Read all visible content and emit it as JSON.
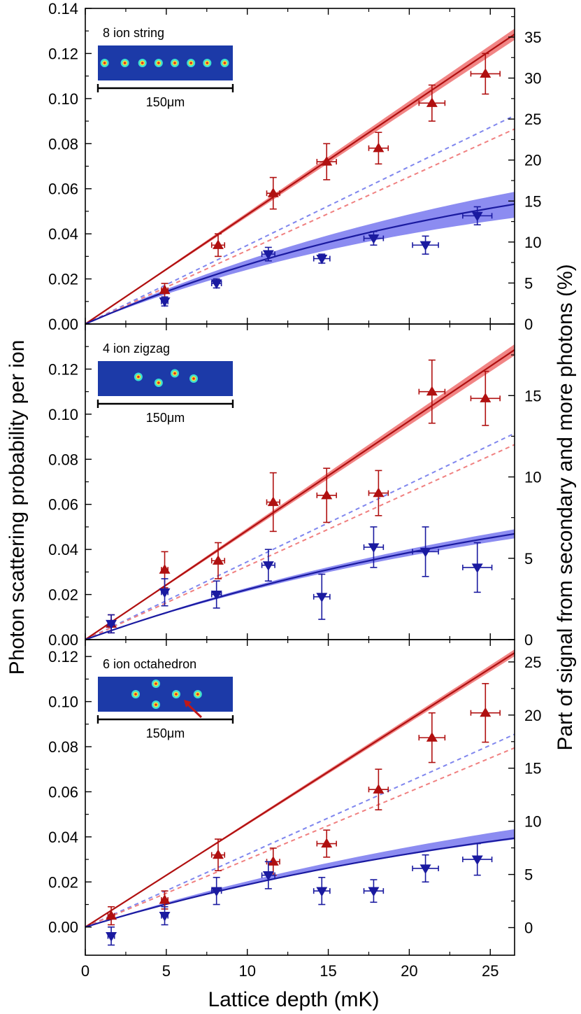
{
  "figure": {
    "xlabel": "Lattice depth (mK)",
    "ylabel_left": "Photon scattering probability per ion",
    "ylabel_right": "Part of signal from secondary and more photons (%)",
    "colors": {
      "red_series": "#b01010",
      "red_band": "#f07878",
      "red_dashed": "#f08080",
      "blue_series": "#1a1aa0",
      "blue_band": "#8080f0",
      "blue_dashed": "#7f86ee",
      "inset_bg": "#1c3aa8"
    }
  },
  "chart_data": [
    {
      "type": "scatter",
      "label": "8 ion string",
      "scale_label": "150μm",
      "xlim": [
        0,
        26.5
      ],
      "xticks": [
        0,
        5,
        10,
        15,
        20,
        25
      ],
      "ylim": [
        0,
        0.14
      ],
      "yticks": [
        "0.00",
        "0.02",
        "0.04",
        "0.06",
        "0.08",
        "0.10",
        "0.12",
        "0.14"
      ],
      "right_axis": {
        "ylim": [
          0,
          38.5
        ],
        "ticks": [
          "0",
          "5",
          "10",
          "15",
          "20",
          "25",
          "30",
          "35"
        ]
      },
      "inset_spots": [
        [
          0.05,
          0.5
        ],
        [
          0.2,
          0.5
        ],
        [
          0.33,
          0.5
        ],
        [
          0.45,
          0.5
        ],
        [
          0.57,
          0.5
        ],
        [
          0.69,
          0.5
        ],
        [
          0.81,
          0.5
        ],
        [
          0.94,
          0.5
        ]
      ],
      "series": [
        {
          "marker": "up-triangle",
          "color": "red",
          "points": [
            {
              "x": 4.9,
              "y": 0.015,
              "yerr": 0.003,
              "xerr": 0.2
            },
            {
              "x": 8.2,
              "y": 0.035,
              "yerr": 0.005,
              "xerr": 0.4
            },
            {
              "x": 11.6,
              "y": 0.058,
              "yerr": 0.007,
              "xerr": 0.4
            },
            {
              "x": 14.9,
              "y": 0.072,
              "yerr": 0.008,
              "xerr": 0.6
            },
            {
              "x": 18.1,
              "y": 0.078,
              "yerr": 0.007,
              "xerr": 0.6
            },
            {
              "x": 21.4,
              "y": 0.098,
              "yerr": 0.008,
              "xerr": 0.8
            },
            {
              "x": 24.7,
              "y": 0.111,
              "yerr": 0.009,
              "xerr": 0.9
            }
          ]
        },
        {
          "marker": "down-triangle",
          "color": "blue",
          "points": [
            {
              "x": 4.9,
              "y": 0.01,
              "yerr": 0.002,
              "xerr": 0.2
            },
            {
              "x": 8.1,
              "y": 0.018,
              "yerr": 0.002,
              "xerr": 0.3
            },
            {
              "x": 11.3,
              "y": 0.031,
              "yerr": 0.003,
              "xerr": 0.4
            },
            {
              "x": 14.6,
              "y": 0.029,
              "yerr": 0.002,
              "xerr": 0.5
            },
            {
              "x": 17.8,
              "y": 0.038,
              "yerr": 0.003,
              "xerr": 0.6
            },
            {
              "x": 21.0,
              "y": 0.035,
              "yerr": 0.004,
              "xerr": 0.8
            },
            {
              "x": 24.2,
              "y": 0.048,
              "yerr": 0.004,
              "xerr": 0.9
            }
          ]
        }
      ],
      "fits": {
        "red": {
          "slope": 0.00485,
          "band": 0.0025
        },
        "blue": {
          "a": 0.085,
          "tau": 27,
          "band_hi": 0.0055,
          "band_lo": 0.006
        },
        "red_dashed": {
          "y_end": 0.0865
        },
        "blue_dashed": {
          "y_end": 0.0925
        }
      }
    },
    {
      "type": "scatter",
      "label": "4 ion zigzag",
      "scale_label": "150μm",
      "xlim": [
        0,
        26.5
      ],
      "xticks": [
        0,
        5,
        10,
        15,
        20,
        25
      ],
      "ylim": [
        0,
        0.14
      ],
      "yticks": [
        "0.00",
        "0.02",
        "0.04",
        "0.06",
        "0.08",
        "0.10",
        "0.12"
      ],
      "right_axis": {
        "ylim": [
          0,
          19.4
        ],
        "ticks": [
          "0",
          "5",
          "10",
          "15"
        ]
      },
      "inset_spots": [
        [
          0.3,
          0.45
        ],
        [
          0.45,
          0.62
        ],
        [
          0.57,
          0.35
        ],
        [
          0.71,
          0.5
        ]
      ],
      "series": [
        {
          "marker": "up-triangle",
          "color": "red",
          "points": [
            {
              "x": 1.6,
              "y": 0.007,
              "yerr": 0.004,
              "xerr": 0.2
            },
            {
              "x": 4.9,
              "y": 0.031,
              "yerr": 0.008,
              "xerr": 0.2
            },
            {
              "x": 8.2,
              "y": 0.035,
              "yerr": 0.008,
              "xerr": 0.4
            },
            {
              "x": 11.6,
              "y": 0.061,
              "yerr": 0.013,
              "xerr": 0.4
            },
            {
              "x": 14.9,
              "y": 0.064,
              "yerr": 0.012,
              "xerr": 0.6
            },
            {
              "x": 18.1,
              "y": 0.065,
              "yerr": 0.01,
              "xerr": 0.6
            },
            {
              "x": 21.4,
              "y": 0.11,
              "yerr": 0.014,
              "xerr": 0.8
            },
            {
              "x": 24.7,
              "y": 0.107,
              "yerr": 0.012,
              "xerr": 0.9
            }
          ]
        },
        {
          "marker": "down-triangle",
          "color": "blue",
          "points": [
            {
              "x": 1.6,
              "y": 0.007,
              "yerr": 0.004,
              "xerr": 0.2
            },
            {
              "x": 4.9,
              "y": 0.021,
              "yerr": 0.006,
              "xerr": 0.2
            },
            {
              "x": 8.1,
              "y": 0.02,
              "yerr": 0.006,
              "xerr": 0.3
            },
            {
              "x": 11.3,
              "y": 0.033,
              "yerr": 0.007,
              "xerr": 0.4
            },
            {
              "x": 14.6,
              "y": 0.019,
              "yerr": 0.01,
              "xerr": 0.5
            },
            {
              "x": 17.8,
              "y": 0.041,
              "yerr": 0.009,
              "xerr": 0.6
            },
            {
              "x": 21.0,
              "y": 0.039,
              "yerr": 0.011,
              "xerr": 0.8
            },
            {
              "x": 24.2,
              "y": 0.032,
              "yerr": 0.011,
              "xerr": 0.9
            }
          ]
        }
      ],
      "fits": {
        "red": {
          "slope": 0.00485,
          "band": 0.0025
        },
        "blue": {
          "a": 0.085,
          "tau": 33,
          "band_hi": 0.002,
          "band_lo": 0.002
        },
        "red_dashed": {
          "y_end": 0.0865
        },
        "blue_dashed": {
          "y_end": 0.0915
        }
      }
    },
    {
      "type": "scatter",
      "label": "6 ion octahedron",
      "scale_label": "150μm",
      "xlim": [
        0,
        26.5
      ],
      "xticks": [
        0,
        5,
        10,
        15,
        20,
        25
      ],
      "xticklabels": [
        "0",
        "5",
        "10",
        "15",
        "20",
        "25"
      ],
      "ylim": [
        -0.0125,
        0.1275
      ],
      "yticks": [
        "0.00",
        "0.02",
        "0.04",
        "0.06",
        "0.08",
        "0.10",
        "0.12"
      ],
      "right_axis": {
        "ylim": [
          -2.6,
          27.1
        ],
        "ticks": [
          "0",
          "5",
          "10",
          "15",
          "20",
          "25"
        ]
      },
      "inset_spots": [
        [
          0.28,
          0.5
        ],
        [
          0.43,
          0.2
        ],
        [
          0.43,
          0.8
        ],
        [
          0.58,
          0.5
        ],
        [
          0.74,
          0.5
        ]
      ],
      "series": [
        {
          "marker": "up-triangle",
          "color": "red",
          "points": [
            {
              "x": 1.6,
              "y": 0.005,
              "yerr": 0.004,
              "xerr": 0.2
            },
            {
              "x": 4.9,
              "y": 0.012,
              "yerr": 0.004,
              "xerr": 0.2
            },
            {
              "x": 8.2,
              "y": 0.032,
              "yerr": 0.007,
              "xerr": 0.4
            },
            {
              "x": 11.6,
              "y": 0.029,
              "yerr": 0.006,
              "xerr": 0.4
            },
            {
              "x": 14.9,
              "y": 0.037,
              "yerr": 0.006,
              "xerr": 0.6
            },
            {
              "x": 18.1,
              "y": 0.061,
              "yerr": 0.009,
              "xerr": 0.6
            },
            {
              "x": 21.4,
              "y": 0.084,
              "yerr": 0.011,
              "xerr": 0.8
            },
            {
              "x": 24.7,
              "y": 0.095,
              "yerr": 0.013,
              "xerr": 0.9
            }
          ]
        },
        {
          "marker": "down-triangle",
          "color": "blue",
          "points": [
            {
              "x": 1.6,
              "y": -0.004,
              "yerr": 0.004,
              "xerr": 0.2
            },
            {
              "x": 4.9,
              "y": 0.005,
              "yerr": 0.004,
              "xerr": 0.2
            },
            {
              "x": 8.1,
              "y": 0.016,
              "yerr": 0.006,
              "xerr": 0.3
            },
            {
              "x": 11.3,
              "y": 0.023,
              "yerr": 0.006,
              "xerr": 0.4
            },
            {
              "x": 14.6,
              "y": 0.016,
              "yerr": 0.006,
              "xerr": 0.5
            },
            {
              "x": 17.8,
              "y": 0.016,
              "yerr": 0.005,
              "xerr": 0.6
            },
            {
              "x": 21.0,
              "y": 0.026,
              "yerr": 0.006,
              "xerr": 0.8
            },
            {
              "x": 24.2,
              "y": 0.03,
              "yerr": 0.007,
              "xerr": 0.9
            }
          ]
        }
      ],
      "fits": {
        "red": {
          "slope": 0.00459,
          "band": 0.0015
        },
        "blue": {
          "a": 0.07,
          "tau": 32,
          "band_hi": 0.004,
          "band_lo": 0.0005
        },
        "red_dashed": {
          "y_end": 0.0795
        },
        "blue_dashed": {
          "y_end": 0.0855
        }
      }
    }
  ]
}
